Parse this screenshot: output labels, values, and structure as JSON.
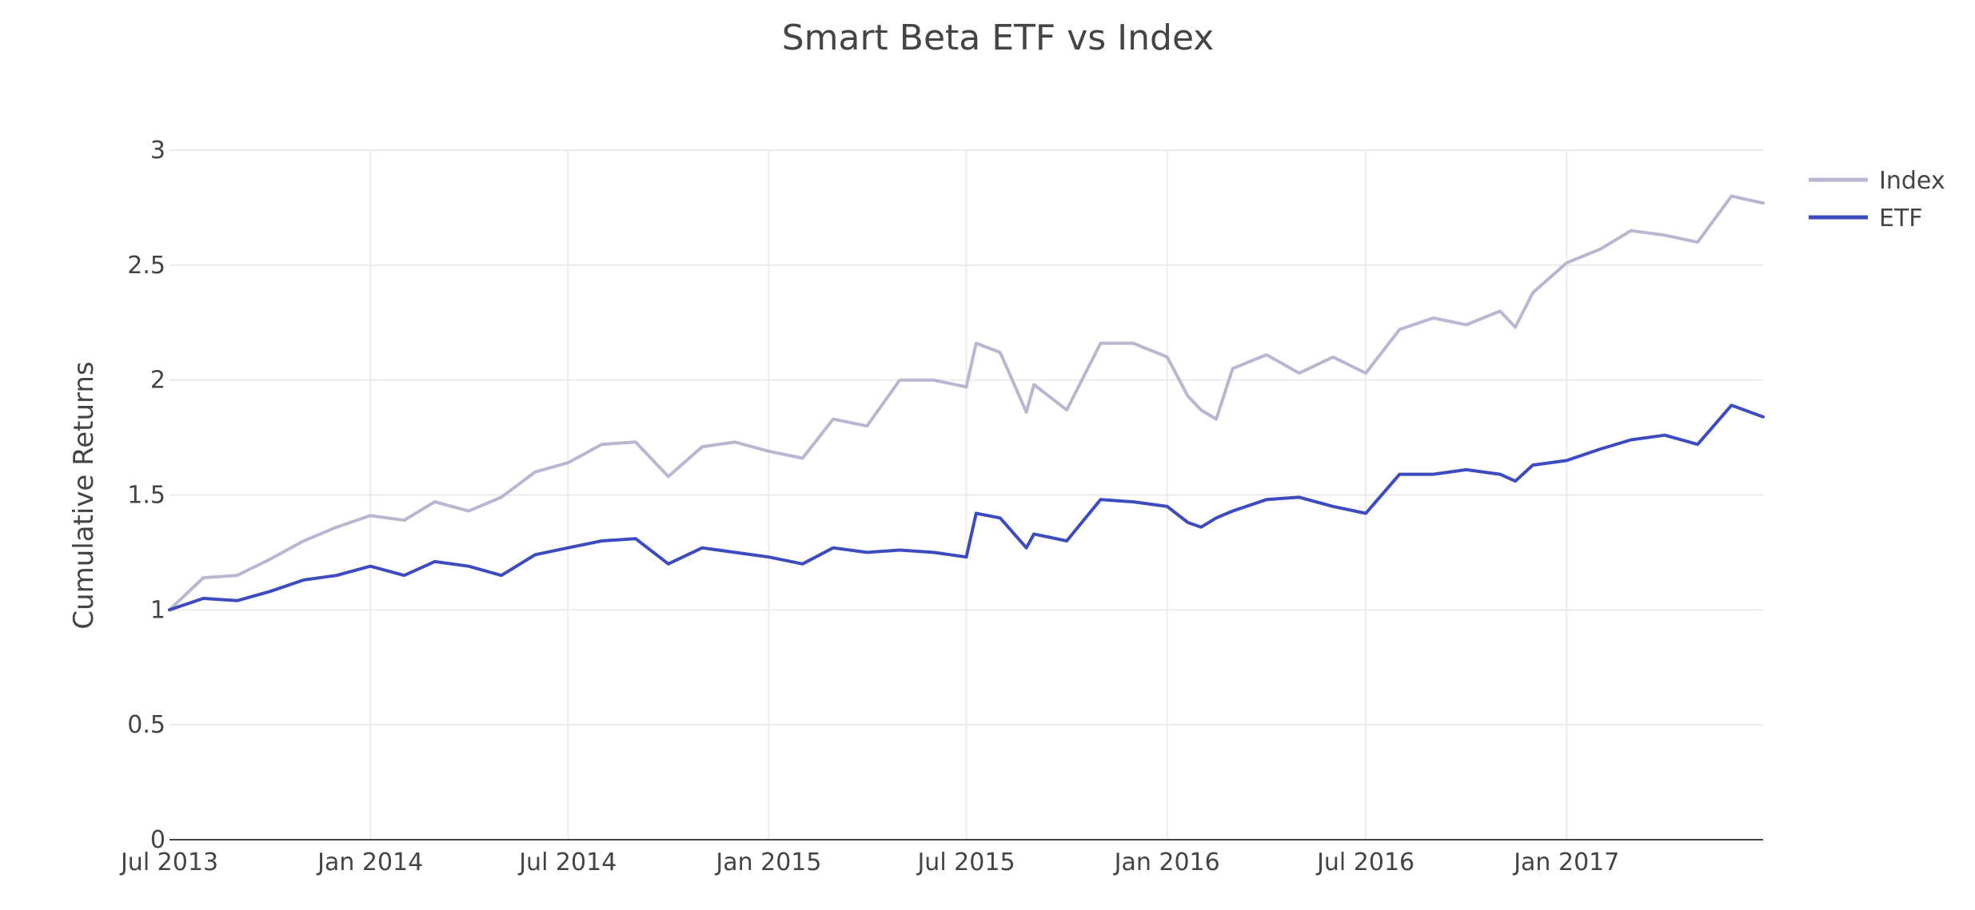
{
  "chart_data": {
    "type": "line",
    "title": "Smart Beta ETF vs Index",
    "xlabel": "",
    "ylabel": "Cumulative Returns",
    "x_range": [
      "2013-07-01",
      "2017-06-30"
    ],
    "ylim": [
      0,
      3
    ],
    "y_ticks": [
      0,
      0.5,
      1,
      1.5,
      2,
      2.5,
      3
    ],
    "y_tick_labels": [
      "0",
      "0.5",
      "1",
      "1.5",
      "2",
      "2.5",
      "3"
    ],
    "x_ticks": [
      "2013-07-01",
      "2014-01-01",
      "2014-07-01",
      "2015-01-01",
      "2015-07-01",
      "2016-01-01",
      "2016-07-01",
      "2017-01-01"
    ],
    "x_tick_labels": [
      "Jul 2013",
      "Jan 2014",
      "Jul 2014",
      "Jan 2015",
      "Jul 2015",
      "Jan 2016",
      "Jul 2016",
      "Jan 2017"
    ],
    "grid": true,
    "legend_position": "top-right",
    "series": [
      {
        "name": "Index",
        "color": "#b9b6d1",
        "x": [
          "2013-07-01",
          "2013-08-01",
          "2013-09-01",
          "2013-10-01",
          "2013-11-01",
          "2013-12-01",
          "2014-01-01",
          "2014-02-01",
          "2014-03-01",
          "2014-04-01",
          "2014-05-01",
          "2014-06-01",
          "2014-07-01",
          "2014-08-01",
          "2014-09-01",
          "2014-10-01",
          "2014-11-01",
          "2014-12-01",
          "2015-01-01",
          "2015-02-01",
          "2015-03-01",
          "2015-04-01",
          "2015-05-01",
          "2015-06-01",
          "2015-07-01",
          "2015-07-10",
          "2015-08-01",
          "2015-08-25",
          "2015-09-01",
          "2015-10-01",
          "2015-11-01",
          "2015-12-01",
          "2016-01-01",
          "2016-01-20",
          "2016-02-01",
          "2016-02-15",
          "2016-03-01",
          "2016-04-01",
          "2016-05-01",
          "2016-06-01",
          "2016-07-01",
          "2016-08-01",
          "2016-09-01",
          "2016-10-01",
          "2016-11-01",
          "2016-11-15",
          "2016-12-01",
          "2017-01-01",
          "2017-02-01",
          "2017-03-01",
          "2017-04-01",
          "2017-05-01",
          "2017-06-01",
          "2017-06-30"
        ],
        "y": [
          1.0,
          1.14,
          1.15,
          1.22,
          1.3,
          1.36,
          1.41,
          1.39,
          1.47,
          1.43,
          1.49,
          1.6,
          1.64,
          1.72,
          1.73,
          1.58,
          1.71,
          1.73,
          1.69,
          1.66,
          1.83,
          1.8,
          2.0,
          2.0,
          1.97,
          2.16,
          2.12,
          1.86,
          1.98,
          1.87,
          2.16,
          2.16,
          2.1,
          1.93,
          1.87,
          1.83,
          2.05,
          2.11,
          2.03,
          2.1,
          2.03,
          2.22,
          2.27,
          2.24,
          2.3,
          2.23,
          2.38,
          2.51,
          2.57,
          2.65,
          2.63,
          2.6,
          2.8,
          2.77
        ]
      },
      {
        "name": "ETF",
        "color": "#3c4bc0",
        "x": [
          "2013-07-01",
          "2013-08-01",
          "2013-09-01",
          "2013-10-01",
          "2013-11-01",
          "2013-12-01",
          "2014-01-01",
          "2014-02-01",
          "2014-03-01",
          "2014-04-01",
          "2014-05-01",
          "2014-06-01",
          "2014-07-01",
          "2014-08-01",
          "2014-09-01",
          "2014-10-01",
          "2014-11-01",
          "2014-12-01",
          "2015-01-01",
          "2015-02-01",
          "2015-03-01",
          "2015-04-01",
          "2015-05-01",
          "2015-06-01",
          "2015-07-01",
          "2015-07-10",
          "2015-08-01",
          "2015-08-25",
          "2015-09-01",
          "2015-10-01",
          "2015-11-01",
          "2015-12-01",
          "2016-01-01",
          "2016-01-20",
          "2016-02-01",
          "2016-02-15",
          "2016-03-01",
          "2016-04-01",
          "2016-05-01",
          "2016-06-01",
          "2016-07-01",
          "2016-08-01",
          "2016-09-01",
          "2016-10-01",
          "2016-11-01",
          "2016-11-15",
          "2016-12-01",
          "2017-01-01",
          "2017-02-01",
          "2017-03-01",
          "2017-04-01",
          "2017-05-01",
          "2017-06-01",
          "2017-06-30"
        ],
        "y": [
          1.0,
          1.05,
          1.04,
          1.08,
          1.13,
          1.15,
          1.19,
          1.15,
          1.21,
          1.19,
          1.15,
          1.24,
          1.27,
          1.3,
          1.31,
          1.2,
          1.27,
          1.25,
          1.23,
          1.2,
          1.27,
          1.25,
          1.26,
          1.25,
          1.23,
          1.42,
          1.4,
          1.27,
          1.33,
          1.3,
          1.48,
          1.47,
          1.45,
          1.38,
          1.36,
          1.4,
          1.43,
          1.48,
          1.49,
          1.45,
          1.42,
          1.59,
          1.59,
          1.61,
          1.59,
          1.56,
          1.63,
          1.65,
          1.7,
          1.74,
          1.76,
          1.72,
          1.89,
          1.84
        ]
      }
    ]
  }
}
